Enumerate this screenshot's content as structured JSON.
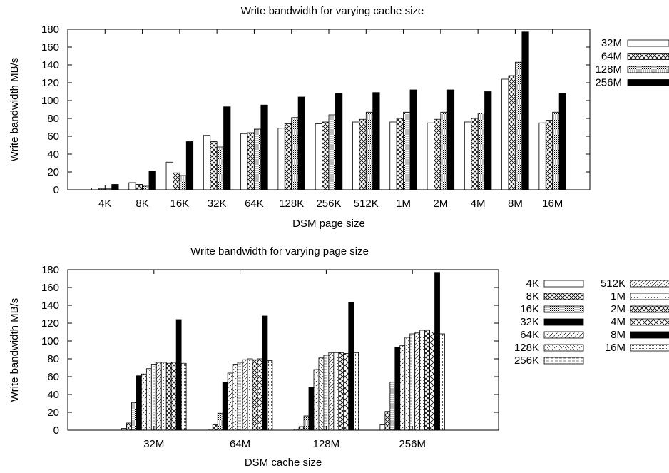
{
  "chart_data": [
    {
      "type": "bar",
      "title": "Write bandwidth for varying cache size",
      "xlabel": "DSM page size",
      "ylabel": "Write bandwidth MB/s",
      "ylim": [
        0,
        180
      ],
      "yticks": [
        "0",
        "20",
        "40",
        "60",
        "80",
        "100",
        "120",
        "140",
        "160",
        "180"
      ],
      "grid": false,
      "legend_position": "right",
      "categories": [
        "4K",
        "8K",
        "16K",
        "32K",
        "64K",
        "128K",
        "256K",
        "512K",
        "1M",
        "2M",
        "4M",
        "8M",
        "16M"
      ],
      "series": [
        {
          "name": "32M",
          "pattern": "empty",
          "values": [
            2,
            8,
            31,
            61,
            63,
            69,
            74,
            76,
            76,
            75,
            76,
            124,
            75
          ]
        },
        {
          "name": "64M",
          "pattern": "cross",
          "values": [
            1,
            6,
            19,
            54,
            64,
            74,
            76,
            79,
            80,
            79,
            80,
            128,
            78
          ]
        },
        {
          "name": "128M",
          "pattern": "dots",
          "values": [
            1,
            4,
            16,
            48,
            68,
            81,
            84,
            87,
            87,
            87,
            86,
            143,
            87
          ]
        },
        {
          "name": "256M",
          "pattern": "solid",
          "values": [
            6,
            21,
            54,
            93,
            95,
            104,
            108,
            109,
            112,
            112,
            110,
            177,
            108
          ]
        }
      ]
    },
    {
      "type": "bar",
      "title": "Write bandwidth for varying page size",
      "xlabel": "DSM cache size",
      "ylabel": "Write bandwidth MB/s",
      "ylim": [
        0,
        180
      ],
      "yticks": [
        "0",
        "20",
        "40",
        "60",
        "80",
        "100",
        "120",
        "140",
        "160",
        "180"
      ],
      "grid": false,
      "legend_position": "right",
      "categories": [
        "32M",
        "64M",
        "128M",
        "256M"
      ],
      "series": [
        {
          "name": "4K",
          "pattern": "empty",
          "values": [
            2,
            1,
            1,
            6
          ]
        },
        {
          "name": "8K",
          "pattern": "cross",
          "values": [
            8,
            6,
            4,
            21
          ]
        },
        {
          "name": "16K",
          "pattern": "dots",
          "values": [
            31,
            19,
            16,
            54
          ]
        },
        {
          "name": "32K",
          "pattern": "solid",
          "values": [
            61,
            54,
            48,
            93
          ]
        },
        {
          "name": "64K",
          "pattern": "dashes",
          "values": [
            63,
            64,
            68,
            95
          ]
        },
        {
          "name": "128K",
          "pattern": "dashes2",
          "values": [
            69,
            74,
            81,
            104
          ]
        },
        {
          "name": "256K",
          "pattern": "dashes3",
          "values": [
            74,
            76,
            84,
            108
          ]
        },
        {
          "name": "512K",
          "pattern": "slash",
          "values": [
            76,
            79,
            87,
            109
          ]
        },
        {
          "name": "1M",
          "pattern": "dotted",
          "values": [
            76,
            80,
            87,
            112
          ]
        },
        {
          "name": "2M",
          "pattern": "cross",
          "values": [
            75,
            79,
            87,
            112
          ]
        },
        {
          "name": "4M",
          "pattern": "cross2",
          "values": [
            76,
            80,
            86,
            110
          ]
        },
        {
          "name": "8M",
          "pattern": "solid",
          "values": [
            124,
            128,
            143,
            177
          ]
        },
        {
          "name": "16M",
          "pattern": "stipple",
          "values": [
            75,
            78,
            87,
            108
          ]
        }
      ]
    }
  ]
}
